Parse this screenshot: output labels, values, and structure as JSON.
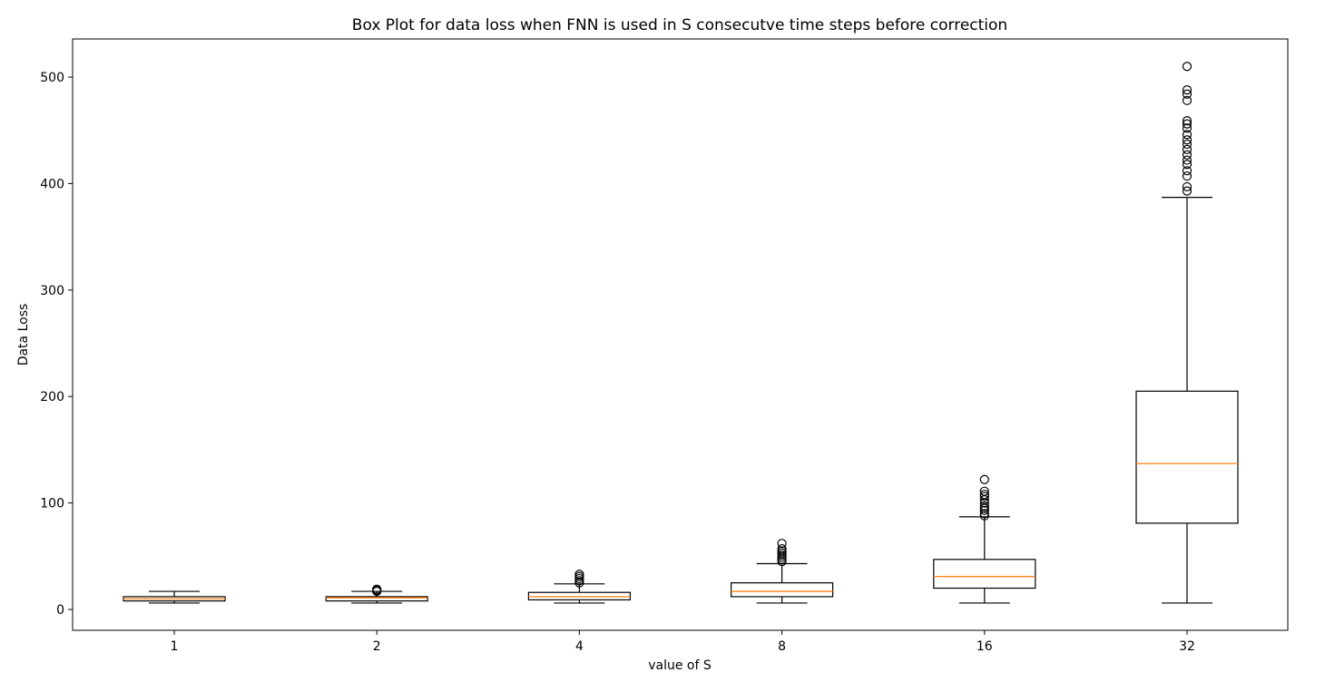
{
  "chart_data": {
    "type": "box",
    "title": "Box Plot for data loss when FNN is used in S consecutve time steps before correction",
    "xlabel": "value of S",
    "ylabel": "Data Loss",
    "ylim": [
      -20,
      530
    ],
    "yticks": [
      0,
      100,
      200,
      300,
      400,
      500
    ],
    "categories": [
      "1",
      "2",
      "4",
      "8",
      "16",
      "32"
    ],
    "boxes": [
      {
        "label": "1",
        "whisker_low": 6,
        "q1": 8,
        "median": 10,
        "q3": 12,
        "whisker_high": 17,
        "outliers": []
      },
      {
        "label": "2",
        "whisker_low": 6,
        "q1": 8,
        "median": 11,
        "q3": 12,
        "whisker_high": 17,
        "outliers": [
          17,
          18,
          19
        ]
      },
      {
        "label": "4",
        "whisker_low": 6,
        "q1": 9,
        "median": 12,
        "q3": 16,
        "whisker_high": 24,
        "outliers": [
          25,
          27,
          29,
          31,
          33
        ]
      },
      {
        "label": "8",
        "whisker_low": 6,
        "q1": 12,
        "median": 17,
        "q3": 25,
        "whisker_high": 43,
        "outliers": [
          45,
          47,
          49,
          51,
          53,
          55,
          57,
          62
        ]
      },
      {
        "label": "16",
        "whisker_low": 6,
        "q1": 20,
        "median": 31,
        "q3": 47,
        "whisker_high": 87,
        "outliers": [
          88,
          90,
          93,
          95,
          97,
          100,
          103,
          106,
          108,
          111,
          122
        ]
      },
      {
        "label": "32",
        "whisker_low": 6,
        "q1": 81,
        "median": 137,
        "q3": 205,
        "whisker_high": 387,
        "outliers": [
          393,
          397,
          407,
          412,
          418,
          422,
          427,
          432,
          437,
          441,
          446,
          452,
          456,
          459,
          478,
          484,
          488,
          510
        ]
      }
    ],
    "colors": {
      "box": "#000000",
      "median": "#ff7f0e",
      "outlier": "#000000"
    },
    "grid": false,
    "legend": "none"
  }
}
